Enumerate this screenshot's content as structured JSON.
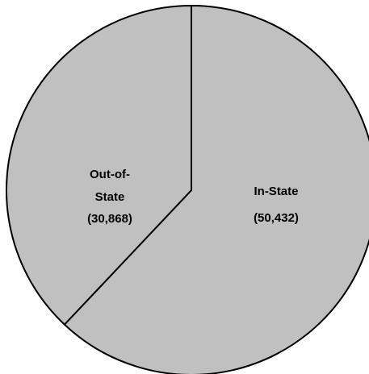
{
  "chart_data": {
    "type": "pie",
    "slices": [
      {
        "label": "In-State",
        "value": 50432,
        "value_text": "(50,432)"
      },
      {
        "label": "Out-of-State",
        "label_lines": [
          "Out-of-",
          "State"
        ],
        "value": 30868,
        "value_text": "(30,868)"
      }
    ],
    "start_angle": "12 o'clock",
    "direction": "clockwise",
    "fill_color": "#c0c0c0",
    "stroke_color": "#000000",
    "legend": "none"
  }
}
